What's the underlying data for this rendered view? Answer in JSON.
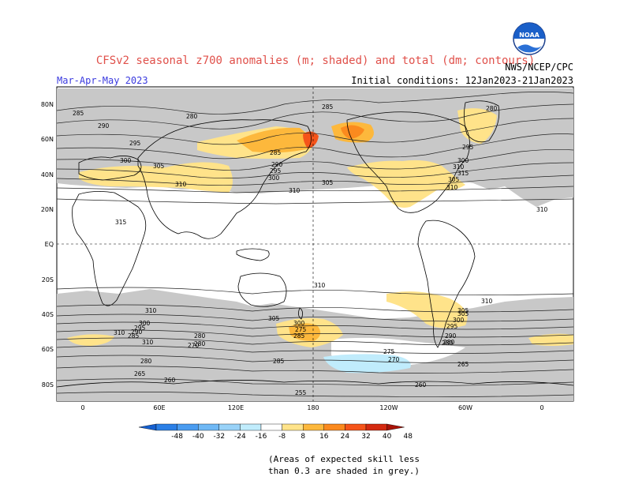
{
  "header": {
    "title": "CFSv2 seasonal z700 anomalies (m; shaded) and total (dm; contours)",
    "season": "Mar-Apr-May 2023",
    "agency": "NWS/NCEP/CPC",
    "init": "Initial conditions: 12Jan2023-21Jan2023",
    "logo_text": "NOAA"
  },
  "axes": {
    "lat_labels": [
      "80N",
      "60N",
      "40N",
      "20N",
      "EQ",
      "20S",
      "40S",
      "60S",
      "80S"
    ],
    "lon_labels": [
      "0",
      "60E",
      "120E",
      "180",
      "120W",
      "60W",
      "0"
    ]
  },
  "colorbar": {
    "labels": [
      "-48",
      "-40",
      "-32",
      "-24",
      "-16",
      "-8",
      "8",
      "16",
      "24",
      "32",
      "40",
      "48"
    ],
    "colors": [
      "#1560d0",
      "#2b7fe6",
      "#4a9cf0",
      "#6fb8f5",
      "#98d2f8",
      "#c0ecfc",
      "#ffffff",
      "#ffe38a",
      "#fdb83c",
      "#fb8a1e",
      "#f5541a",
      "#d42a10",
      "#a81208"
    ]
  },
  "note": {
    "line1": "(Areas of expected skill less",
    "line2": "than 0.3 are shaded in grey.)"
  },
  "contour_labels": {
    "nh": [
      "285",
      "280",
      "290",
      "295",
      "285",
      "300",
      "305",
      "310",
      "310",
      "310",
      "315",
      "305",
      "300",
      "295",
      "290",
      "285",
      "280",
      "295",
      "300",
      "305",
      "310",
      "315",
      "310",
      "310"
    ],
    "sh": [
      "310",
      "310",
      "305",
      "300",
      "295",
      "290",
      "285",
      "280",
      "275",
      "270",
      "280",
      "285",
      "265",
      "260",
      "255",
      "260",
      "265",
      "280",
      "300",
      "305",
      "310",
      "280",
      "285",
      "290",
      "295",
      "300",
      "305",
      "310",
      "270",
      "275",
      "280"
    ]
  },
  "colors": {
    "skill_grey": "#c8c8c8",
    "pos1": "#ffe38a",
    "pos2": "#fdb83c",
    "pos3": "#fb8a1e",
    "pos4": "#f5541a",
    "neg1": "#c0ecfc"
  }
}
